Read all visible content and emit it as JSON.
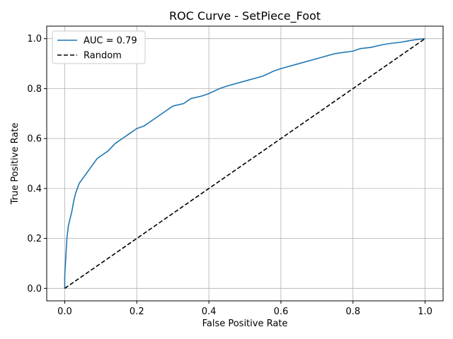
{
  "chart_data": {
    "type": "line",
    "title": "ROC Curve - SetPiece_Foot",
    "xlabel": "False Positive Rate",
    "ylabel": "True Positive Rate",
    "xlim": [
      -0.05,
      1.05
    ],
    "ylim": [
      -0.05,
      1.05
    ],
    "xticks": [
      "0.0",
      "0.2",
      "0.4",
      "0.6",
      "0.8",
      "1.0"
    ],
    "yticks": [
      "0.0",
      "0.2",
      "0.4",
      "0.6",
      "0.8",
      "1.0"
    ],
    "grid": true,
    "legend_position": "top-left",
    "series": [
      {
        "name": "AUC = 0.79",
        "color": "#1f77b4",
        "style": "solid",
        "x": [
          0.0,
          0.0,
          0.002,
          0.004,
          0.006,
          0.01,
          0.015,
          0.02,
          0.025,
          0.03,
          0.04,
          0.05,
          0.06,
          0.07,
          0.08,
          0.09,
          0.1,
          0.12,
          0.14,
          0.16,
          0.18,
          0.2,
          0.22,
          0.25,
          0.28,
          0.3,
          0.33,
          0.35,
          0.38,
          0.4,
          0.43,
          0.45,
          0.5,
          0.55,
          0.58,
          0.6,
          0.65,
          0.7,
          0.75,
          0.8,
          0.82,
          0.85,
          0.88,
          0.9,
          0.93,
          0.95,
          0.97,
          1.0
        ],
        "y": [
          0.0,
          0.05,
          0.1,
          0.15,
          0.2,
          0.25,
          0.28,
          0.31,
          0.35,
          0.38,
          0.42,
          0.44,
          0.46,
          0.48,
          0.5,
          0.52,
          0.53,
          0.55,
          0.58,
          0.6,
          0.62,
          0.64,
          0.65,
          0.68,
          0.71,
          0.73,
          0.74,
          0.76,
          0.77,
          0.78,
          0.8,
          0.81,
          0.83,
          0.85,
          0.87,
          0.88,
          0.9,
          0.92,
          0.94,
          0.95,
          0.96,
          0.965,
          0.975,
          0.98,
          0.985,
          0.99,
          0.995,
          1.0
        ]
      },
      {
        "name": "Random",
        "color": "#000000",
        "style": "dashed",
        "x": [
          0.0,
          1.0
        ],
        "y": [
          0.0,
          1.0
        ]
      }
    ]
  }
}
